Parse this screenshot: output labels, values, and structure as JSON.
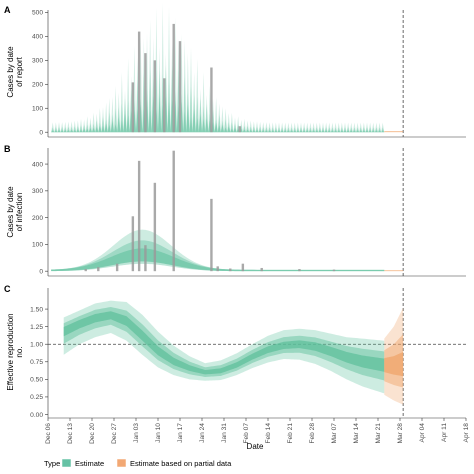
{
  "colors": {
    "estimate": "#5bbf9a",
    "partial": "#f0a266",
    "bars": "#9a9a9a",
    "axis": "#333333",
    "hline": "#444444"
  },
  "legend": {
    "title": "Type",
    "items": [
      {
        "label": "Estimate",
        "color": "#66c2a5"
      },
      {
        "label": "Estimate based on partial data",
        "color": "#f2a874"
      }
    ]
  },
  "chart_data": [
    {
      "type": "bar",
      "panel": "A",
      "ylabel": "Cases by date of report",
      "ylim": [
        0,
        500
      ],
      "yticks": [
        "0",
        "100",
        "200",
        "300",
        "400",
        "500"
      ],
      "xlabel": "",
      "xticks": [],
      "vline_date": "2020-03-28",
      "x": [
        "2020-01-02",
        "2020-01-04",
        "2020-01-06",
        "2020-01-09",
        "2020-01-12",
        "2020-01-15",
        "2020-01-17",
        "2020-01-27",
        "2020-02-05"
      ],
      "values": [
        208,
        420,
        330,
        300,
        225,
        452,
        380,
        270,
        25
      ],
      "series": [
        {
          "name": "Estimate",
          "ribbon_outer_peak": 500,
          "ribbon_median_peak": 150,
          "end_date": "2020-03-22"
        },
        {
          "name": "Estimate based on partial data",
          "start_date": "2020-03-22",
          "end_date": "2020-03-28",
          "level": 5
        }
      ]
    },
    {
      "type": "bar",
      "panel": "B",
      "ylabel": "Cases by date of infection",
      "ylim": [
        0,
        450
      ],
      "yticks": [
        "0",
        "100",
        "200",
        "300",
        "400"
      ],
      "xlabel": "",
      "xticks": [],
      "vline_date": "2020-03-28",
      "x": [
        "2019-12-18",
        "2019-12-22",
        "2019-12-28",
        "2020-01-02",
        "2020-01-04",
        "2020-01-06",
        "2020-01-09",
        "2020-01-15",
        "2020-01-27",
        "2020-01-29",
        "2020-02-02",
        "2020-02-06",
        "2020-02-12",
        "2020-02-24",
        "2020-03-06"
      ],
      "values": [
        8,
        15,
        28,
        205,
        412,
        97,
        330,
        450,
        270,
        18,
        10,
        28,
        12,
        8,
        6
      ],
      "series": [
        {
          "name": "Estimate",
          "peak_date": "2020-01-05",
          "outer_peak": 150,
          "mid_peak": 110,
          "median_peak": 80
        },
        {
          "name": "Estimate based on partial data",
          "start_date": "2020-03-22",
          "end_date": "2020-03-28",
          "level": 4
        }
      ]
    },
    {
      "type": "line",
      "panel": "C",
      "ylabel": "Effective reproduction no.",
      "xlabel": "Date",
      "ylim": [
        -0.05,
        1.8
      ],
      "yticks": [
        0,
        0.25,
        0.5,
        0.75,
        1.0,
        1.25,
        1.5
      ],
      "ytick_labels": [
        "0.00",
        "0.25",
        "0.50",
        "0.75",
        "1.00",
        "1.25",
        "1.50"
      ],
      "hline": 1.0,
      "vline_date": "2020-03-28",
      "xticks": [
        "Dec 06",
        "Dec 13",
        "Dec 20",
        "Dec 27",
        "Jan 03",
        "Jan 10",
        "Jan 17",
        "Jan 24",
        "Jan 31",
        "Feb 07",
        "Feb 14",
        "Feb 21",
        "Feb 28",
        "Mar 07",
        "Mar 14",
        "Mar 21",
        "Mar 28",
        "Apr 04",
        "Apr 11",
        "Apr 18"
      ],
      "x": [
        "2019-12-11",
        "2019-12-16",
        "2019-12-21",
        "2019-12-26",
        "2019-12-31",
        "2020-01-05",
        "2020-01-10",
        "2020-01-15",
        "2020-01-20",
        "2020-01-25",
        "2020-01-30",
        "2020-02-04",
        "2020-02-09",
        "2020-02-14",
        "2020-02-19",
        "2020-02-24",
        "2020-02-29",
        "2020-03-05",
        "2020-03-10",
        "2020-03-15",
        "2020-03-22"
      ],
      "series": [
        {
          "name": "Estimate",
          "median": [
            1.2,
            1.3,
            1.38,
            1.42,
            1.33,
            1.12,
            0.9,
            0.75,
            0.66,
            0.6,
            0.62,
            0.7,
            0.82,
            0.92,
            0.98,
            1.0,
            0.97,
            0.9,
            0.82,
            0.76,
            0.71
          ],
          "outer_low": [
            0.85,
            1.0,
            1.1,
            1.16,
            1.05,
            0.85,
            0.67,
            0.56,
            0.5,
            0.48,
            0.49,
            0.56,
            0.66,
            0.74,
            0.79,
            0.78,
            0.72,
            0.62,
            0.5,
            0.4,
            0.3
          ],
          "outer_high": [
            1.38,
            1.48,
            1.58,
            1.62,
            1.6,
            1.42,
            1.18,
            0.98,
            0.83,
            0.73,
            0.77,
            0.87,
            1.0,
            1.12,
            1.2,
            1.22,
            1.2,
            1.15,
            1.1,
            1.08,
            1.05
          ]
        },
        {
          "name": "Estimate based on partial data",
          "x": [
            "2020-03-22",
            "2020-03-25",
            "2020-03-28"
          ],
          "median": [
            0.71,
            0.69,
            0.68
          ],
          "outer_low": [
            0.28,
            0.2,
            0.14
          ],
          "outer_high": [
            1.08,
            1.25,
            1.52
          ]
        }
      ]
    }
  ]
}
